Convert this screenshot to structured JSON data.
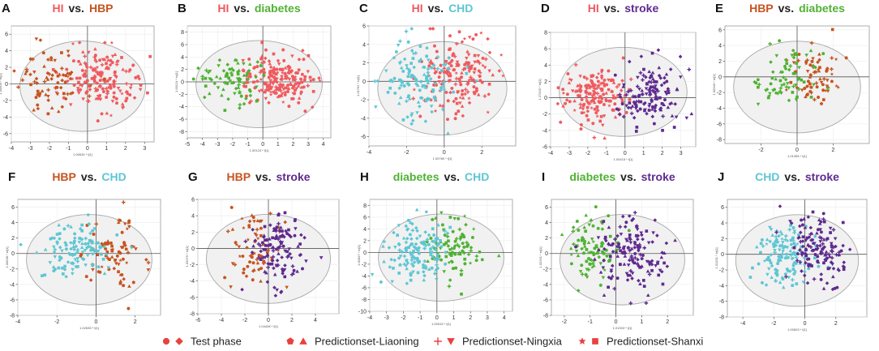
{
  "colors": {
    "HI": "#ef5a5e",
    "HBP": "#c65420",
    "diabetes": "#4fb233",
    "CHD": "#5ec6d3",
    "stroke": "#5e2a8f",
    "vs": "#222222",
    "legend_marker": "#e8423f"
  },
  "chart_data": [
    {
      "type": "scatter",
      "letter": "A",
      "group1": "HI",
      "group2": "HBP",
      "vs_label": "vs.",
      "xlim": [
        -4,
        3.5
      ],
      "ylim": [
        -7,
        7
      ],
      "xticks": [
        -4,
        -3,
        -2,
        -1,
        0,
        1,
        2,
        3
      ],
      "yticks": [
        -6,
        -4,
        -2,
        0,
        2,
        4,
        6
      ],
      "xlabel": "1.00634 * t[1]",
      "ylabel": "1.00604 * to[1]",
      "series": [
        {
          "name": "HI",
          "center": [
            0.8,
            0.5
          ],
          "spread": [
            1.0,
            1.9
          ],
          "n": 170
        },
        {
          "name": "HBP",
          "center": [
            -1.9,
            0.3
          ],
          "spread": [
            0.9,
            1.9
          ],
          "n": 75
        }
      ]
    },
    {
      "type": "scatter",
      "letter": "B",
      "group1": "HI",
      "group2": "diabetes",
      "vs_label": "vs.",
      "xlim": [
        -5,
        4.5
      ],
      "ylim": [
        -9,
        9
      ],
      "xticks": [
        -5,
        -4,
        -3,
        -2,
        -1,
        0,
        1,
        2,
        3,
        4
      ],
      "yticks": [
        -8,
        -6,
        -4,
        -2,
        0,
        2,
        4,
        6,
        8
      ],
      "xlabel": "1.00124 * t[1]",
      "ylabel": "1.00124 * to[1]",
      "series": [
        {
          "name": "HI",
          "center": [
            0.9,
            0.5
          ],
          "spread": [
            1.1,
            2.0
          ],
          "n": 200
        },
        {
          "name": "diabetes",
          "center": [
            -2.0,
            0.3
          ],
          "spread": [
            0.9,
            2.0
          ],
          "n": 80
        }
      ]
    },
    {
      "type": "scatter",
      "letter": "C",
      "group1": "HI",
      "group2": "CHD",
      "vs_label": "vs.",
      "xlim": [
        -4,
        3.8
      ],
      "ylim": [
        -7,
        6
      ],
      "xticks": [
        -4,
        -2,
        0,
        2
      ],
      "yticks": [
        -6,
        -4,
        -2,
        0,
        2,
        4,
        6
      ],
      "xlabel": "1.00780 * t[1]",
      "ylabel": "1.01762 * to[1]",
      "series": [
        {
          "name": "HI",
          "center": [
            0.8,
            0.5
          ],
          "spread": [
            1.0,
            2.0
          ],
          "n": 170
        },
        {
          "name": "CHD",
          "center": [
            -1.5,
            0.2
          ],
          "spread": [
            1.0,
            2.0
          ],
          "n": 130
        }
      ]
    },
    {
      "type": "scatter",
      "letter": "D",
      "group1": "HI",
      "group2": "stroke",
      "vs_label": "vs.",
      "xlim": [
        -4,
        3.8
      ],
      "ylim": [
        -6,
        8
      ],
      "xticks": [
        -4,
        -3,
        -2,
        -1,
        0,
        1,
        2,
        3
      ],
      "yticks": [
        -6,
        -4,
        -2,
        0,
        2,
        4,
        6,
        8
      ],
      "xlabel": "1.00415 * t[1]",
      "ylabel": "1.27433 * to[1]",
      "series": [
        {
          "name": "HI",
          "center": [
            -1.6,
            0.4
          ],
          "spread": [
            0.9,
            1.7
          ],
          "n": 170
        },
        {
          "name": "stroke",
          "center": [
            1.2,
            0.5
          ],
          "spread": [
            0.9,
            2.0
          ],
          "n": 140
        }
      ]
    },
    {
      "type": "scatter",
      "letter": "E",
      "group1": "HBP",
      "group2": "diabetes",
      "vs_label": "vs.",
      "xlim": [
        -4,
        4
      ],
      "ylim": [
        -8.5,
        6.5
      ],
      "xticks": [
        -2,
        0,
        2
      ],
      "yticks": [
        -8,
        -6,
        -4,
        -2,
        0,
        2,
        4,
        6
      ],
      "xlabel": "1.01355 * t[1]",
      "ylabel": "1.00349 * to[1]",
      "series": [
        {
          "name": "HBP",
          "center": [
            1.0,
            0.2
          ],
          "spread": [
            0.8,
            1.8
          ],
          "n": 70
        },
        {
          "name": "diabetes",
          "center": [
            -0.5,
            0.0
          ],
          "spread": [
            0.8,
            1.8
          ],
          "n": 70
        }
      ]
    },
    {
      "type": "scatter",
      "letter": "F",
      "group1": "HBP",
      "group2": "CHD",
      "vs_label": "vs.",
      "xlim": [
        -4,
        3.3
      ],
      "ylim": [
        -8,
        7
      ],
      "xticks": [
        -4,
        -2,
        0,
        2
      ],
      "yticks": [
        -8,
        -6,
        -4,
        -2,
        0,
        2,
        4,
        6
      ],
      "xlabel": "1.02635 * t[1]",
      "ylabel": "1.00638 * to[1]",
      "series": [
        {
          "name": "HBP",
          "center": [
            0.8,
            0.0
          ],
          "spread": [
            0.8,
            2.2
          ],
          "n": 80
        },
        {
          "name": "CHD",
          "center": [
            -1.0,
            0.4
          ],
          "spread": [
            0.9,
            2.0
          ],
          "n": 120
        }
      ]
    },
    {
      "type": "scatter",
      "letter": "G",
      "group1": "HBP",
      "group2": "stroke",
      "vs_label": "vs.",
      "xlim": [
        -6,
        6
      ],
      "ylim": [
        -8,
        6
      ],
      "xticks": [
        -6,
        -4,
        -2,
        0,
        2,
        4
      ],
      "yticks": [
        -8,
        -6,
        -4,
        -2,
        0,
        2,
        4,
        6
      ],
      "xlabel": "1.04408 * t[1]",
      "ylabel": "1.02079 * to[1]",
      "series": [
        {
          "name": "HBP",
          "center": [
            -1.3,
            0.0
          ],
          "spread": [
            1.1,
            2.4
          ],
          "n": 70
        },
        {
          "name": "stroke",
          "center": [
            0.8,
            0.2
          ],
          "spread": [
            1.2,
            2.4
          ],
          "n": 120
        }
      ]
    },
    {
      "type": "scatter",
      "letter": "H",
      "group1": "diabetes",
      "group2": "CHD",
      "vs_label": "vs.",
      "xlim": [
        -4,
        4.5
      ],
      "ylim": [
        -10,
        9
      ],
      "xticks": [
        -4,
        -3,
        -2,
        -1,
        0,
        1,
        2,
        3,
        4
      ],
      "yticks": [
        -10,
        -8,
        -6,
        -4,
        -2,
        0,
        2,
        4,
        6,
        8
      ],
      "xlabel": "1.00515 * t[1]",
      "ylabel": "1.00607 * to[1]",
      "series": [
        {
          "name": "diabetes",
          "center": [
            1.0,
            0.5
          ],
          "spread": [
            0.8,
            2.5
          ],
          "n": 90
        },
        {
          "name": "CHD",
          "center": [
            -1.2,
            0.0
          ],
          "spread": [
            1.0,
            2.3
          ],
          "n": 140
        }
      ]
    },
    {
      "type": "scatter",
      "letter": "I",
      "group1": "diabetes",
      "group2": "stroke",
      "vs_label": "vs.",
      "xlim": [
        -2.5,
        3
      ],
      "ylim": [
        -8,
        7
      ],
      "xticks": [
        -2,
        -1,
        0,
        1,
        2
      ],
      "yticks": [
        -8,
        -6,
        -4,
        -2,
        0,
        2,
        4,
        6
      ],
      "xlabel": "1.01303 * t[1]",
      "ylabel": "1.02261 * to[1]",
      "series": [
        {
          "name": "diabetes",
          "center": [
            -0.9,
            0.5
          ],
          "spread": [
            0.5,
            2.3
          ],
          "n": 90
        },
        {
          "name": "stroke",
          "center": [
            0.6,
            0.0
          ],
          "spread": [
            0.7,
            2.3
          ],
          "n": 150
        }
      ]
    },
    {
      "type": "scatter",
      "letter": "J",
      "group1": "CHD",
      "group2": "stroke",
      "vs_label": "vs.",
      "xlim": [
        -5,
        4
      ],
      "ylim": [
        -8,
        7
      ],
      "xticks": [
        -4,
        -2,
        0,
        2
      ],
      "yticks": [
        -8,
        -6,
        -4,
        -2,
        0,
        2,
        4,
        6
      ],
      "xlabel": "1.00603 * t[1]",
      "ylabel": "1.01331 * to[1]",
      "series": [
        {
          "name": "CHD",
          "center": [
            -1.4,
            0.0
          ],
          "spread": [
            0.9,
            2.0
          ],
          "n": 130
        },
        {
          "name": "stroke",
          "center": [
            0.8,
            0.4
          ],
          "spread": [
            0.9,
            2.2
          ],
          "n": 140
        }
      ]
    }
  ],
  "legend": [
    {
      "label": "Test phase",
      "markers": [
        "circle",
        "diamond"
      ]
    },
    {
      "label": "Predictionset-Liaoning",
      "markers": [
        "pentagon",
        "triangle-up"
      ]
    },
    {
      "label": "Predictionset-Ningxia",
      "markers": [
        "plus",
        "triangle-down"
      ]
    },
    {
      "label": "Predictionset-Shanxi",
      "markers": [
        "star",
        "square"
      ]
    }
  ]
}
